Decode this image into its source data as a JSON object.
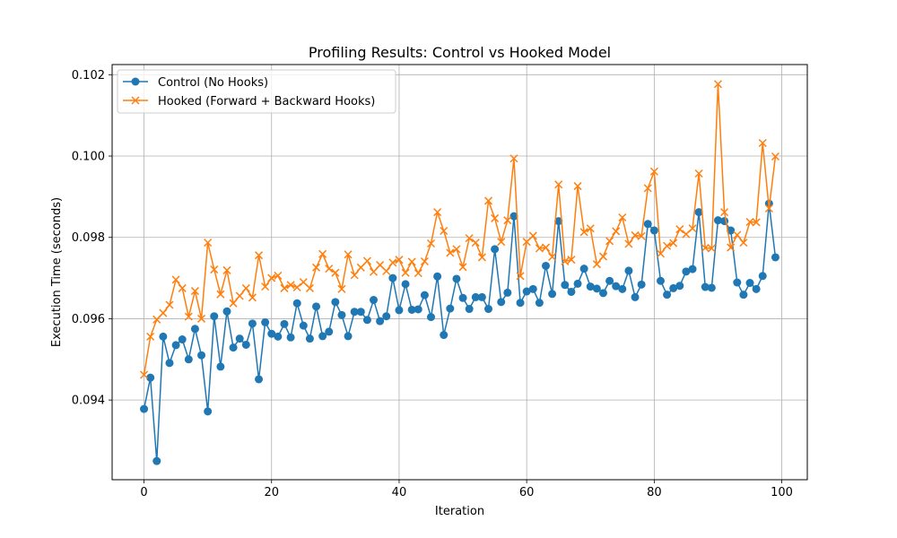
{
  "chart_data": {
    "type": "line",
    "title": "Profiling Results: Control vs Hooked Model",
    "xlabel": "Iteration",
    "ylabel": "Execution Time (seconds)",
    "xlim": [
      -5,
      104
    ],
    "ylim": [
      0.09204,
      0.10225
    ],
    "xticks": [
      0,
      20,
      40,
      60,
      80,
      100
    ],
    "yticks": [
      0.094,
      0.096,
      0.098,
      0.1,
      0.102
    ],
    "xtick_labels": [
      "0",
      "20",
      "40",
      "60",
      "80",
      "100"
    ],
    "ytick_labels": [
      "0.094",
      "0.096",
      "0.098",
      "0.100",
      "0.102"
    ],
    "grid": true,
    "legend_position": "top-left",
    "series": [
      {
        "name": "Control (No Hooks)",
        "color": "#1f77b4",
        "marker": "circle",
        "values": [
          0.09378,
          0.09455,
          0.0925,
          0.09556,
          0.09491,
          0.09535,
          0.09549,
          0.095,
          0.09575,
          0.0951,
          0.09372,
          0.09606,
          0.09482,
          0.09618,
          0.09529,
          0.09551,
          0.09536,
          0.09588,
          0.09451,
          0.09591,
          0.09563,
          0.09556,
          0.09587,
          0.09554,
          0.09638,
          0.09583,
          0.09551,
          0.0963,
          0.09557,
          0.09568,
          0.09641,
          0.09609,
          0.09557,
          0.09617,
          0.09617,
          0.09597,
          0.09646,
          0.09594,
          0.09606,
          0.097,
          0.09621,
          0.09685,
          0.09622,
          0.09623,
          0.09658,
          0.09604,
          0.09704,
          0.0956,
          0.09625,
          0.09698,
          0.09651,
          0.09624,
          0.09653,
          0.09653,
          0.09624,
          0.09771,
          0.09641,
          0.09664,
          0.09852,
          0.09639,
          0.09667,
          0.09673,
          0.09639,
          0.0973,
          0.09661,
          0.0984,
          0.09683,
          0.09666,
          0.09686,
          0.09723,
          0.09679,
          0.09674,
          0.09663,
          0.09693,
          0.0968,
          0.09673,
          0.09718,
          0.09653,
          0.09684,
          0.09833,
          0.09817,
          0.09693,
          0.09659,
          0.09675,
          0.09681,
          0.09716,
          0.09722,
          0.09862,
          0.09678,
          0.09676,
          0.09842,
          0.0984,
          0.09817,
          0.09689,
          0.09659,
          0.09688,
          0.09673,
          0.09705,
          0.09883,
          0.09751
        ]
      },
      {
        "name": "Hooked (Forward + Backward Hooks)",
        "color": "#ff7f0e",
        "marker": "x",
        "values": [
          0.09462,
          0.09556,
          0.09598,
          0.09614,
          0.09634,
          0.09696,
          0.09675,
          0.09605,
          0.09668,
          0.096,
          0.09787,
          0.09721,
          0.0966,
          0.09719,
          0.09638,
          0.09656,
          0.09675,
          0.09652,
          0.09756,
          0.09679,
          0.097,
          0.09706,
          0.09675,
          0.09683,
          0.09677,
          0.0969,
          0.09675,
          0.09726,
          0.09759,
          0.09723,
          0.09713,
          0.09673,
          0.09758,
          0.09707,
          0.09726,
          0.09742,
          0.09715,
          0.09732,
          0.09717,
          0.09738,
          0.09745,
          0.09713,
          0.0974,
          0.09712,
          0.09741,
          0.09785,
          0.09862,
          0.09816,
          0.09762,
          0.09771,
          0.09727,
          0.09798,
          0.09787,
          0.09751,
          0.0989,
          0.09847,
          0.09789,
          0.09842,
          0.09994,
          0.09705,
          0.09789,
          0.09804,
          0.09773,
          0.09775,
          0.09752,
          0.0993,
          0.09741,
          0.09745,
          0.09926,
          0.09813,
          0.09822,
          0.09734,
          0.09753,
          0.09791,
          0.09815,
          0.09849,
          0.09784,
          0.09805,
          0.09803,
          0.09921,
          0.09962,
          0.0976,
          0.09779,
          0.09786,
          0.0982,
          0.09808,
          0.09822,
          0.09957,
          0.09774,
          0.09773,
          0.10177,
          0.09862,
          0.09775,
          0.09806,
          0.09787,
          0.09838,
          0.09837,
          0.10032,
          0.09871,
          0.09999
        ]
      }
    ]
  }
}
